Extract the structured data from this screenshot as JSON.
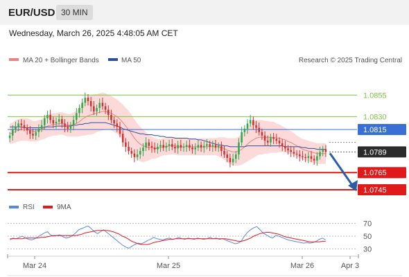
{
  "header": {
    "symbol": "EUR/USD",
    "timeframe": "30 MIN",
    "datetime": "Wednesday, March 26, 2025 4:48:05 AM CET"
  },
  "legend": {
    "ma20_label": "MA 20 + Bollinger Bands",
    "ma50_label": "MA 50",
    "credit": "Research © 2025 Trading Central",
    "rsi_label": "RSI",
    "rsi_ma_label": "9MA"
  },
  "colors": {
    "up": "#2ea84a",
    "down": "#d22d2d",
    "ma20": "#f08080",
    "ma50": "#2b4f9e",
    "band": "#fbd4d4",
    "green_level": "#7fc24a",
    "red_level": "#e01a1a",
    "blue_level": "#3a6fd6",
    "last": "#2b2b2b",
    "arrow": "#2a5caa",
    "rsi": "#5b86e5"
  },
  "chart_data": [
    {
      "type": "candlestick",
      "title": "EUR/USD",
      "timeframe": "30 MIN",
      "ylim": [
        1.0737,
        1.0885
      ],
      "x_ticks": [
        "Mar 24",
        "Mar 25",
        "Mar 26",
        "Apr 3"
      ],
      "levels": [
        {
          "label": "1.0855",
          "value": 1.0855,
          "kind": "resistance"
        },
        {
          "label": "1.0830",
          "value": 1.083,
          "kind": "resistance"
        },
        {
          "label": "1.0815",
          "value": 1.0815,
          "kind": "pivot"
        },
        {
          "label": "1.0789",
          "value": 1.0789,
          "kind": "last"
        },
        {
          "label": "1.0765",
          "value": 1.0765,
          "kind": "support"
        },
        {
          "label": "1.0745",
          "value": 1.0745,
          "kind": "support"
        }
      ],
      "close": [
        1.0808,
        1.0815,
        1.0818,
        1.0822,
        1.082,
        1.0817,
        1.0814,
        1.081,
        1.0808,
        1.0812,
        1.0816,
        1.082,
        1.0828,
        1.0832,
        1.0826,
        1.0822,
        1.0824,
        1.0827,
        1.0822,
        1.0818,
        1.0816,
        1.082,
        1.0826,
        1.0834,
        1.084,
        1.0846,
        1.0852,
        1.0848,
        1.0842,
        1.0836,
        1.084,
        1.0846,
        1.0842,
        1.0838,
        1.0832,
        1.0826,
        1.0822,
        1.0818,
        1.081,
        1.08,
        1.0795,
        1.079,
        1.0787,
        1.0783,
        1.0786,
        1.079,
        1.0794,
        1.08,
        1.0796,
        1.0794,
        1.0792,
        1.0795,
        1.0797,
        1.0794,
        1.0796,
        1.0798,
        1.0795,
        1.0793,
        1.0797,
        1.0794,
        1.0795,
        1.0797,
        1.0794,
        1.0792,
        1.0794,
        1.0797,
        1.0794,
        1.0796,
        1.0798,
        1.0795,
        1.0797,
        1.0794,
        1.0796,
        1.079,
        1.0786,
        1.0782,
        1.0777,
        1.0781,
        1.0786,
        1.08,
        1.0812,
        1.0816,
        1.0822,
        1.0826,
        1.082,
        1.0817,
        1.0812,
        1.0808,
        1.0802,
        1.08,
        1.0806,
        1.0804,
        1.0802,
        1.0799,
        1.0796,
        1.0793,
        1.0791,
        1.0789,
        1.0787,
        1.0786,
        1.0784,
        1.0783,
        1.0782,
        1.0784,
        1.0781,
        1.0779,
        1.0784,
        1.0789,
        1.0792,
        1.0789
      ],
      "ma20": [
        1.081,
        1.0811,
        1.0813,
        1.0814,
        1.0815,
        1.0815,
        1.0815,
        1.0814,
        1.0813,
        1.0813,
        1.0814,
        1.0815,
        1.0817,
        1.0819,
        1.082,
        1.0821,
        1.0821,
        1.0822,
        1.0822,
        1.0821,
        1.082,
        1.082,
        1.0821,
        1.0822,
        1.0824,
        1.0827,
        1.0829,
        1.0831,
        1.0832,
        1.0833,
        1.0834,
        1.0835,
        1.0836,
        1.0836,
        1.0835,
        1.0834,
        1.0832,
        1.083,
        1.0827,
        1.0823,
        1.0819,
        1.0815,
        1.081,
        1.0805,
        1.0801,
        1.0798,
        1.0796,
        1.0795,
        1.0794,
        1.0794,
        1.0793,
        1.0793,
        1.0794,
        1.0795,
        1.0795,
        1.0796,
        1.0796,
        1.0796,
        1.0795,
        1.0795,
        1.0795,
        1.0795,
        1.0795,
        1.0795,
        1.0795,
        1.0795,
        1.0795,
        1.0795,
        1.0795,
        1.0795,
        1.0795,
        1.0795,
        1.0795,
        1.0794,
        1.0793,
        1.0791,
        1.079,
        1.0789,
        1.0789,
        1.079,
        1.0792,
        1.0795,
        1.0798,
        1.0801,
        1.0803,
        1.0805,
        1.0806,
        1.0806,
        1.0806,
        1.0806,
        1.0806,
        1.0806,
        1.0805,
        1.0805,
        1.0804,
        1.0803,
        1.0801,
        1.08,
        1.0798,
        1.0796,
        1.0794,
        1.0792,
        1.0791,
        1.079,
        1.0789,
        1.0788,
        1.0787,
        1.0787,
        1.0787,
        1.0787
      ],
      "ma50": [
        1.0818,
        1.0818,
        1.0818,
        1.0818,
        1.0818,
        1.0817,
        1.0817,
        1.0817,
        1.0817,
        1.0817,
        1.0817,
        1.0817,
        1.0818,
        1.0818,
        1.0818,
        1.0818,
        1.0819,
        1.0819,
        1.0819,
        1.0819,
        1.0819,
        1.0819,
        1.082,
        1.082,
        1.0821,
        1.0821,
        1.0822,
        1.0822,
        1.0823,
        1.0823,
        1.0823,
        1.0823,
        1.0823,
        1.0823,
        1.0822,
        1.0821,
        1.082,
        1.0819,
        1.0818,
        1.0816,
        1.0815,
        1.0814,
        1.0813,
        1.0812,
        1.0811,
        1.081,
        1.081,
        1.0809,
        1.0809,
        1.0809,
        1.0808,
        1.0808,
        1.0807,
        1.0807,
        1.0806,
        1.0806,
        1.0806,
        1.0805,
        1.0805,
        1.0805,
        1.0805,
        1.0805,
        1.0804,
        1.0804,
        1.0804,
        1.0803,
        1.0803,
        1.0802,
        1.0801,
        1.08,
        1.0799,
        1.0798,
        1.0797,
        1.0797,
        1.0796,
        1.0796,
        1.0795,
        1.0795,
        1.0795,
        1.0795,
        1.0795,
        1.0795,
        1.0796,
        1.0796,
        1.0796,
        1.0796,
        1.0796,
        1.0796,
        1.0796,
        1.0796,
        1.0796,
        1.0796,
        1.0796,
        1.0796,
        1.0796,
        1.0795,
        1.0795,
        1.0795,
        1.0795,
        1.0795,
        1.0795,
        1.0794,
        1.0794,
        1.0793,
        1.0793,
        1.0793,
        1.0792,
        1.0792,
        1.0792,
        1.0792
      ],
      "bb_width": [
        0.0012,
        0.0012,
        0.0013,
        0.0013,
        0.0013,
        0.0013,
        0.0013,
        0.0013,
        0.0012,
        0.0012,
        0.0012,
        0.0012,
        0.0013,
        0.0013,
        0.0013,
        0.0013,
        0.0013,
        0.0013,
        0.0013,
        0.0013,
        0.0013,
        0.0013,
        0.0014,
        0.0015,
        0.0017,
        0.0019,
        0.0021,
        0.0022,
        0.0023,
        0.0023,
        0.0022,
        0.0022,
        0.0022,
        0.0021,
        0.002,
        0.002,
        0.002,
        0.002,
        0.002,
        0.0021,
        0.0021,
        0.0022,
        0.0022,
        0.0022,
        0.0021,
        0.002,
        0.0019,
        0.0017,
        0.0015,
        0.0013,
        0.0012,
        0.0011,
        0.001,
        0.001,
        0.001,
        0.001,
        0.001,
        0.001,
        0.001,
        0.001,
        0.001,
        0.001,
        0.001,
        0.001,
        0.001,
        0.001,
        0.001,
        0.001,
        0.001,
        0.001,
        0.001,
        0.001,
        0.0011,
        0.0012,
        0.0013,
        0.0014,
        0.0015,
        0.0016,
        0.0016,
        0.0017,
        0.0018,
        0.0019,
        0.002,
        0.0021,
        0.0021,
        0.0021,
        0.002,
        0.002,
        0.0019,
        0.0019,
        0.0018,
        0.0018,
        0.0017,
        0.0016,
        0.0015,
        0.0014,
        0.0014,
        0.0013,
        0.0013,
        0.0012,
        0.0012,
        0.0012,
        0.0012,
        0.0012,
        0.0012,
        0.0012,
        0.0012,
        0.0012,
        0.0012,
        0.0012
      ],
      "projection": {
        "from": 1.0789,
        "to": 1.0745
      }
    },
    {
      "type": "line",
      "title": "RSI",
      "ylim": [
        25,
        75
      ],
      "y_ticks": [
        70,
        50,
        30
      ],
      "series": [
        {
          "name": "RSI",
          "values": [
            44,
            47,
            46,
            48,
            50,
            47,
            45,
            44,
            46,
            49,
            52,
            55,
            57,
            52,
            50,
            51,
            52,
            49,
            47,
            48,
            51,
            55,
            60,
            62,
            64,
            66,
            62,
            57,
            54,
            57,
            60,
            56,
            52,
            48,
            44,
            40,
            36,
            33,
            31,
            34,
            37,
            39,
            38,
            40,
            43,
            45,
            48,
            46,
            45,
            44,
            46,
            47,
            45,
            46,
            48,
            46,
            45,
            47,
            46,
            45,
            47,
            46,
            45,
            46,
            48,
            46,
            47,
            45,
            46,
            44,
            42,
            40,
            38,
            39,
            42,
            50,
            56,
            60,
            63,
            65,
            60,
            55,
            52,
            49,
            47,
            51,
            50,
            48,
            46,
            44,
            43,
            42,
            41,
            40,
            39,
            40,
            39,
            40,
            42,
            45,
            47,
            44
          ]
        },
        {
          "name": "9MA",
          "values": [
            46,
            46,
            46,
            46,
            46,
            47,
            47,
            47,
            47,
            47,
            48,
            48,
            49,
            50,
            51,
            51,
            51,
            51,
            51,
            51,
            51,
            51,
            52,
            53,
            55,
            56,
            57,
            58,
            59,
            59,
            59,
            59,
            58,
            57,
            55,
            53,
            50,
            48,
            45,
            42,
            40,
            38,
            37,
            37,
            37,
            38,
            40,
            41,
            42,
            43,
            44,
            45,
            45,
            46,
            46,
            46,
            46,
            46,
            46,
            46,
            46,
            46,
            46,
            46,
            46,
            46,
            46,
            46,
            46,
            46,
            45,
            44,
            43,
            42,
            42,
            43,
            45,
            47,
            50,
            52,
            54,
            55,
            56,
            56,
            55,
            54,
            53,
            51,
            49,
            48,
            47,
            46,
            45,
            44,
            43,
            42,
            41,
            41,
            41,
            41,
            42,
            42
          ]
        }
      ]
    }
  ]
}
